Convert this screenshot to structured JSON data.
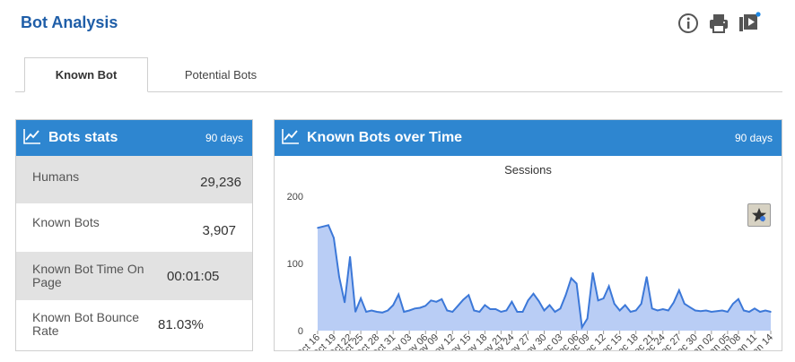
{
  "header": {
    "title": "Bot Analysis",
    "icons": [
      "info-icon",
      "print-icon",
      "video-play-icon"
    ]
  },
  "tabs": [
    {
      "label": "Known Bot",
      "active": true
    },
    {
      "label": "Potential Bots",
      "active": false
    }
  ],
  "stats_panel": {
    "title": "Bots stats",
    "period": "90 days",
    "rows": [
      {
        "label": "Humans",
        "value": "29,236"
      },
      {
        "label": "Known Bots",
        "value": "3,907"
      },
      {
        "label": "Known Bot Time On Page",
        "value": "00:01:05"
      },
      {
        "label": "Known Bot Bounce Rate",
        "value": "81.03%"
      }
    ]
  },
  "chart_panel": {
    "title": "Known Bots over Time",
    "period": "90 days"
  },
  "colors": {
    "accent": "#2e86d0",
    "title": "#1f5ea8",
    "line": "#3c78d8",
    "area": "#b9cdf5"
  },
  "chart_data": {
    "type": "area",
    "title": "Sessions",
    "xlabel": "",
    "ylabel": "",
    "ylim": [
      0,
      200
    ],
    "yticks": [
      0,
      100,
      200
    ],
    "grid": false,
    "x_labels": [
      "Oct 16",
      "Oct 19",
      "Oct 22",
      "Oct 25",
      "Oct 28",
      "Oct 31",
      "Nov 03",
      "Nov 06",
      "Nov 09",
      "Nov 12",
      "Nov 15",
      "Nov 18",
      "Nov 21",
      "Nov 24",
      "Nov 27",
      "Nov 30",
      "Dec 03",
      "Dec 06",
      "Dec 09",
      "Dec 12",
      "Dec 15",
      "Dec 18",
      "Dec 21",
      "Dec 24",
      "Dec 27",
      "Dec 30",
      "Jan 02",
      "Jan 05",
      "Jan 08",
      "Jan 11",
      "Jan 14"
    ],
    "series": [
      {
        "values": [
          153,
          155,
          157,
          138,
          80,
          42,
          110,
          28,
          48,
          28,
          30,
          28,
          27,
          30,
          38,
          54,
          28,
          30,
          33,
          34,
          37,
          45,
          43,
          47,
          30,
          28,
          37,
          46,
          53,
          30,
          28,
          38,
          32,
          32,
          28,
          30,
          43,
          28,
          28,
          45,
          55,
          44,
          30,
          38,
          28,
          33,
          53,
          78,
          70,
          5,
          18,
          86,
          45,
          48,
          66,
          40,
          30,
          38,
          28,
          30,
          40,
          80,
          33,
          30,
          32,
          30,
          42,
          60,
          40,
          35,
          30,
          29,
          30,
          28,
          29,
          30,
          28,
          40,
          47,
          30,
          28,
          33,
          28,
          30,
          28
        ]
      }
    ]
  }
}
